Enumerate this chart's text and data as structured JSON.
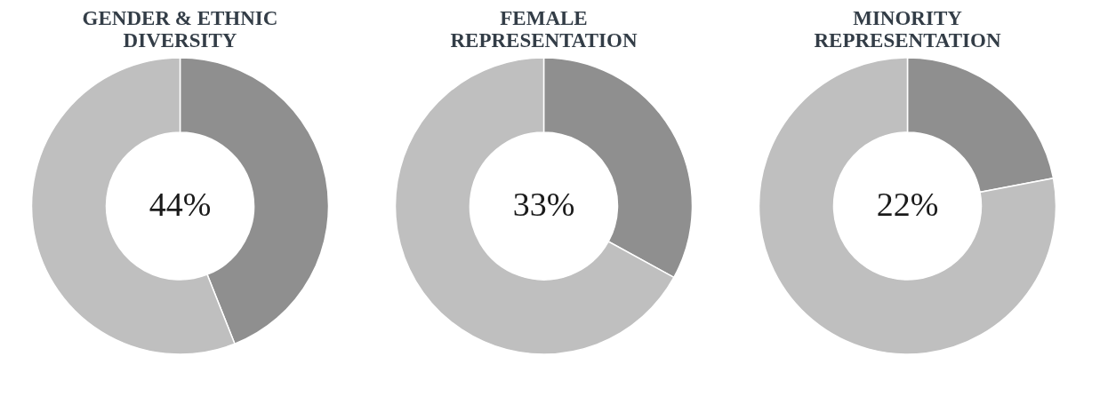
{
  "chart_data": [
    {
      "type": "donut",
      "title": "GENDER & ETHNIC DIVERSITY",
      "categories": [
        null,
        null
      ],
      "values": [
        44,
        56
      ],
      "colors": [
        "#8f8f8f",
        "#bfbfbf"
      ],
      "annotations": [
        "44%"
      ]
    },
    {
      "type": "donut",
      "title": "FEMALE REPRESENTATION",
      "categories": [
        null,
        null
      ],
      "values": [
        33,
        67
      ],
      "colors": [
        "#8f8f8f",
        "#bfbfbf"
      ],
      "annotations": [
        "33%"
      ]
    },
    {
      "type": "donut",
      "title": "MINORITY REPRESENTATION",
      "categories": [
        null,
        null
      ],
      "values": [
        22,
        78
      ],
      "colors": [
        "#8f8f8f",
        "#bfbfbf"
      ],
      "annotations": [
        "22%"
      ]
    }
  ]
}
